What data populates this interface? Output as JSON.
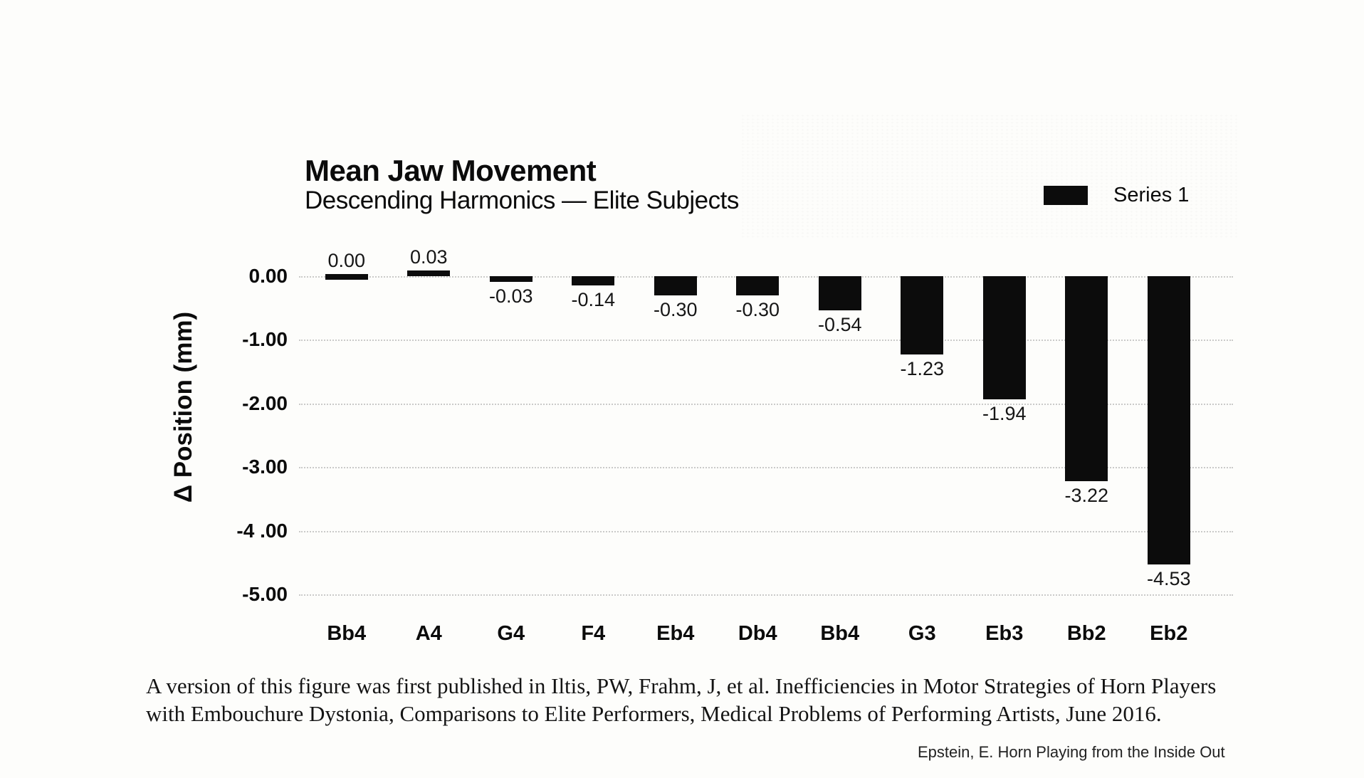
{
  "chart_data": {
    "type": "bar",
    "title": "Mean Jaw Movement",
    "subtitle": "Descending Harmonics — Elite Subjects",
    "ylabel": "Δ Position (mm)",
    "xlabel": "",
    "legend": {
      "label": "Series 1",
      "swatch_color": "#0c0c0c",
      "position": "top-right"
    },
    "bar_color": "#0c0c0c",
    "grid": "horizontal-dotted",
    "ylim": [
      -5,
      0.5
    ],
    "categories": [
      "Bb4",
      "A4",
      "G4",
      "F4",
      "Eb4",
      "Db4",
      "Bb4",
      "G3",
      "Eb3",
      "Bb2",
      "Eb2"
    ],
    "values": [
      0.0,
      0.03,
      -0.03,
      -0.14,
      -0.3,
      -0.3,
      -0.54,
      -1.23,
      -1.94,
      -3.22,
      -4.53
    ],
    "value_labels": [
      "0.00",
      "0.03",
      "-0.03",
      "-0.14",
      "-0.30",
      "-0.30",
      "-0.54",
      "-1.23",
      "-1.94",
      "-3.22",
      "-4.53"
    ],
    "yticks": {
      "labels": [
        "0.00",
        "-1.00",
        "-2.00",
        "-3.00",
        "-4 .00",
        "-5.00"
      ],
      "values": [
        0,
        -1,
        -2,
        -3,
        -4,
        -5
      ]
    }
  },
  "caption": {
    "line1": "A version of this figure was first published in Iltis, PW, Frahm, J, et al. Inefficiencies in Motor Strategies of Horn Players",
    "line2": "with Embouchure Dystonia, Comparisons to Elite Performers, Medical Problems of Performing Artists, June 2016."
  },
  "attribution": "Epstein, E. Horn Playing from the Inside Out"
}
